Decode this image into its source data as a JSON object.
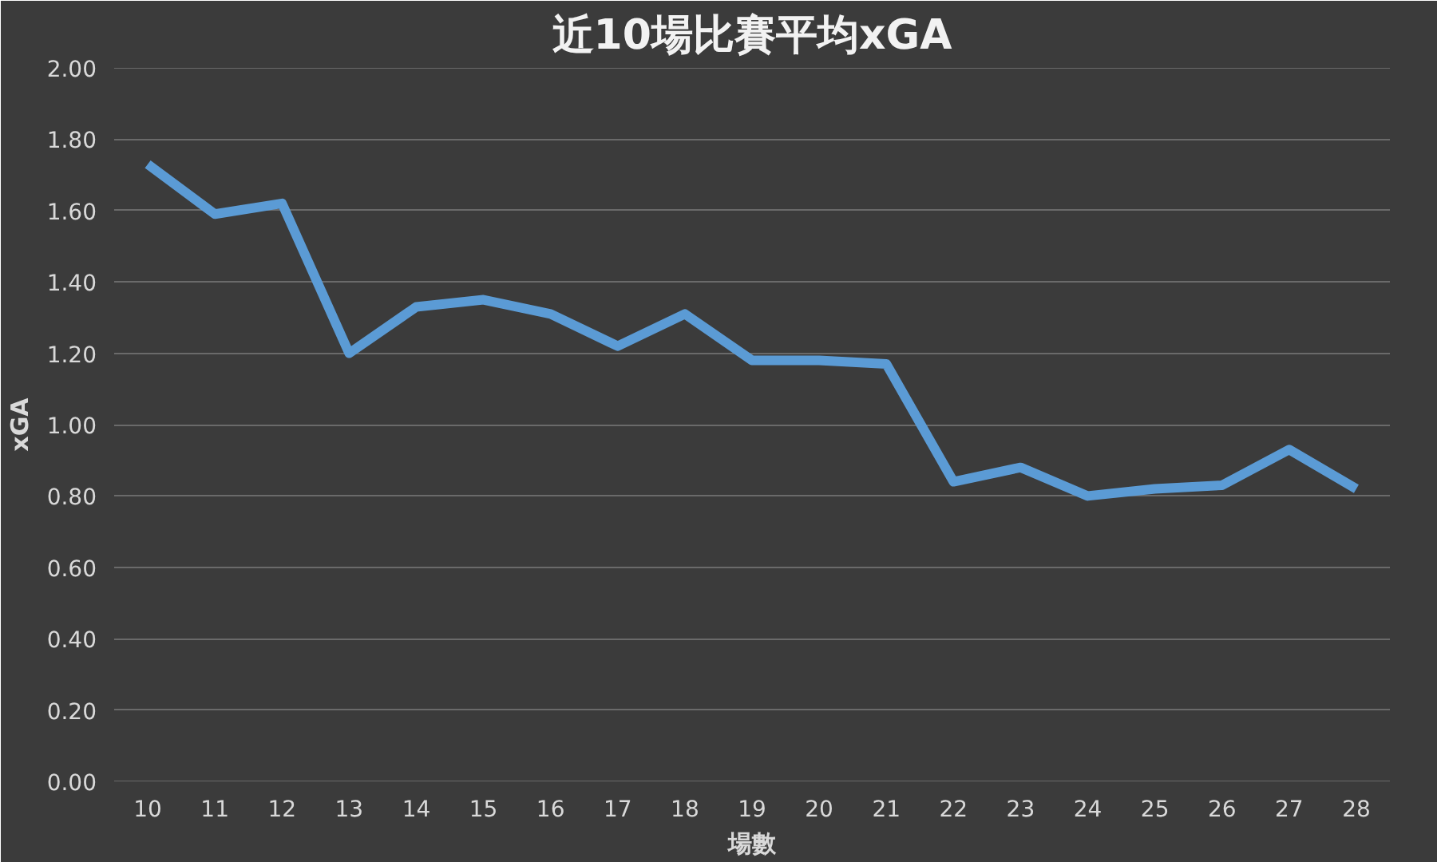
{
  "chart_data": {
    "type": "line",
    "title": "近10場比賽平均xGA",
    "xlabel": "場數",
    "ylabel": "xGA",
    "categories": [
      "10",
      "11",
      "12",
      "13",
      "14",
      "15",
      "16",
      "17",
      "18",
      "19",
      "20",
      "21",
      "22",
      "23",
      "24",
      "25",
      "26",
      "27",
      "28"
    ],
    "series": [
      {
        "color": "#5b9bd5",
        "values": [
          1.73,
          1.59,
          1.62,
          1.2,
          1.33,
          1.35,
          1.31,
          1.22,
          1.31,
          1.18,
          1.18,
          1.17,
          0.84,
          0.88,
          0.8,
          0.82,
          0.83,
          0.93,
          0.82
        ]
      }
    ],
    "ylim": [
      0,
      2
    ],
    "yticks": [
      {
        "value": 0,
        "label": "0.00"
      },
      {
        "value": 0.2,
        "label": "0.20"
      },
      {
        "value": 0.4,
        "label": "0.40"
      },
      {
        "value": 0.6,
        "label": "0.60"
      },
      {
        "value": 0.8,
        "label": "0.80"
      },
      {
        "value": 1.0,
        "label": "1.00"
      },
      {
        "value": 1.2,
        "label": "1.20"
      },
      {
        "value": 1.4,
        "label": "1.40"
      },
      {
        "value": 1.6,
        "label": "1.60"
      },
      {
        "value": 1.8,
        "label": "1.80"
      },
      {
        "value": 2.0,
        "label": "2.00"
      }
    ],
    "grid": "y",
    "marker": "none",
    "line_style": "solid"
  }
}
